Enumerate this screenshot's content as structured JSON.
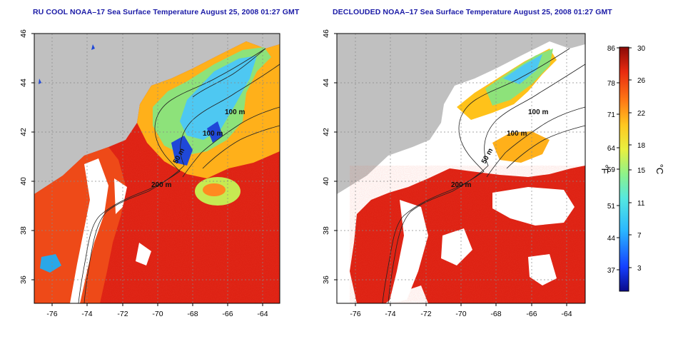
{
  "titles": {
    "left": "RU COOL NOAA–17 Sea Surface Temperature August 25, 2008 01:27 GMT",
    "right": "DECLOUDED NOAA–17 Sea Surface Temperature August 25, 2008 01:27 GMT"
  },
  "axes": {
    "x_ticks": [
      "-76",
      "-74",
      "-72",
      "-70",
      "-68",
      "-66",
      "-64"
    ],
    "y_ticks": [
      "46",
      "44",
      "42",
      "40",
      "38",
      "36"
    ]
  },
  "isobath_labels": [
    "100 m",
    "100 m",
    "200 m",
    "50 m"
  ],
  "colorbar": {
    "f_ticks": [
      "86",
      "78",
      "71",
      "64",
      "59",
      "51",
      "44",
      "37"
    ],
    "c_ticks": [
      "30",
      "26",
      "22",
      "18",
      "15",
      "11",
      "7",
      "3"
    ],
    "f_unit": "°F",
    "c_unit": "°C"
  },
  "colors": {
    "land": "#c0c0c0",
    "cloud": "#ffffff",
    "warm": "#dd1d10",
    "cool": "#56d6ef",
    "title": "#1a1aa6"
  }
}
